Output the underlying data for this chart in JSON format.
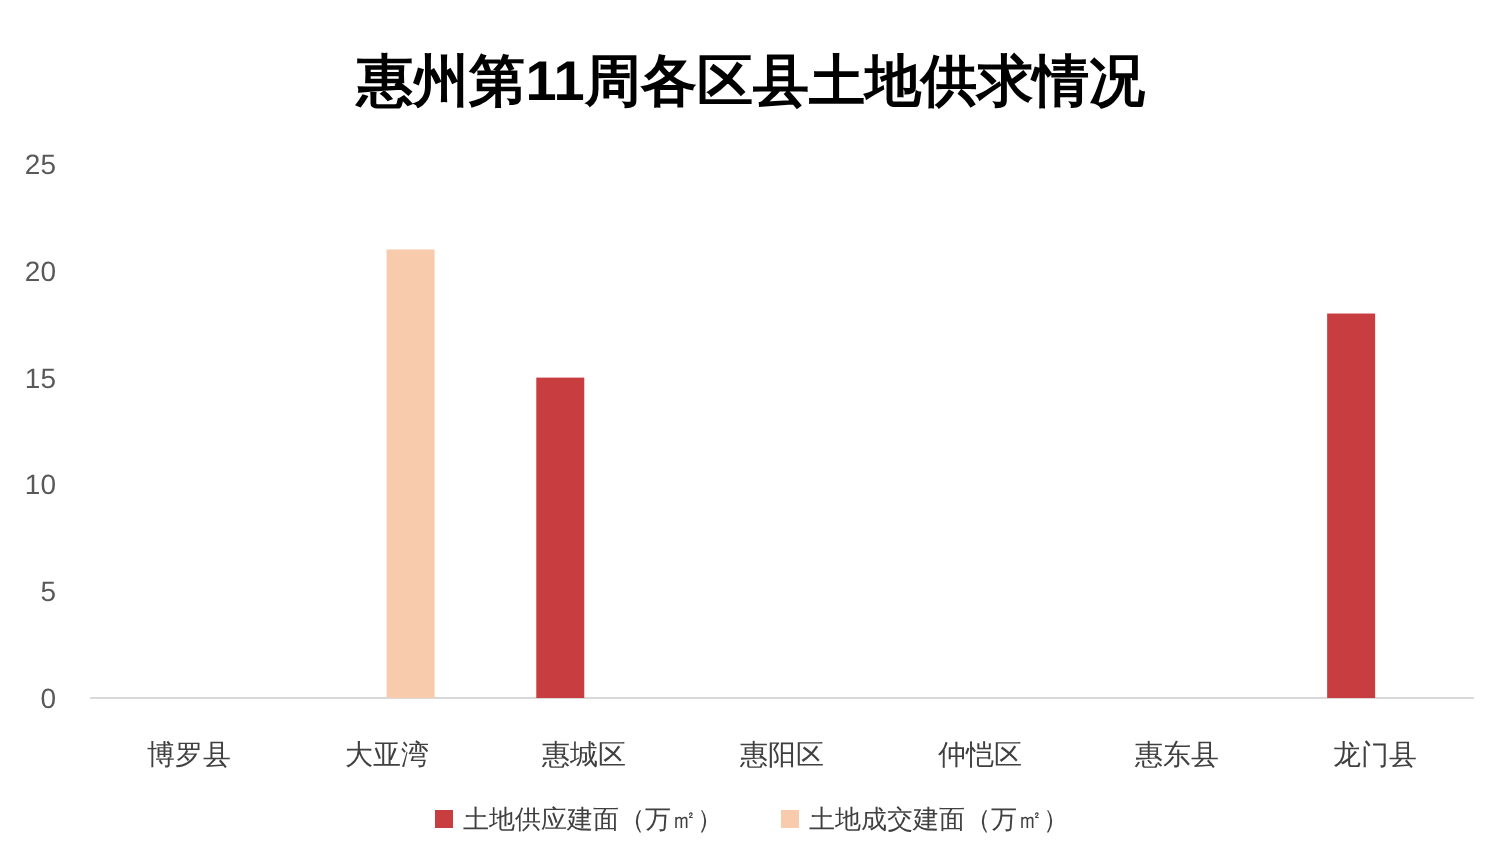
{
  "chart_data": {
    "type": "bar",
    "title": "惠州第11周各区县土地供求情况",
    "categories": [
      "博罗县",
      "大亚湾",
      "惠城区",
      "惠阳区",
      "仲恺区",
      "惠东县",
      "龙门县"
    ],
    "series": [
      {
        "name": "土地供应建面（万㎡）",
        "color": "#c83d3f",
        "values": [
          0,
          0,
          15,
          0,
          0,
          0,
          18
        ]
      },
      {
        "name": "土地成交建面（万㎡）",
        "color": "#f8cbad",
        "values": [
          0,
          21,
          0,
          0,
          0,
          0,
          0
        ]
      }
    ],
    "ylim": [
      0,
      25
    ],
    "yticks": [
      0,
      5,
      10,
      15,
      20,
      25
    ],
    "grid": false,
    "legend": "bottom"
  }
}
